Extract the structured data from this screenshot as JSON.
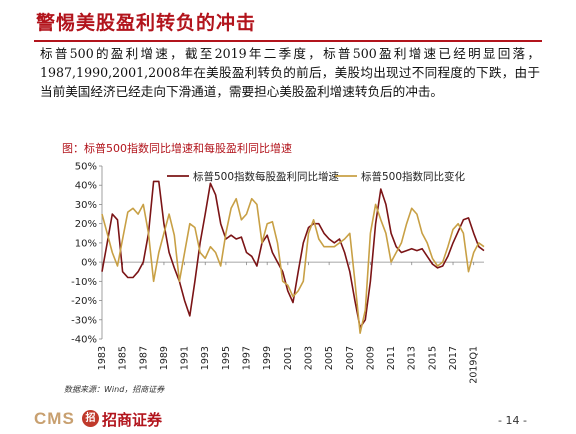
{
  "page": {
    "title": "警惕美股盈利转负的冲击",
    "paragraph": "标普500的盈利增速，截至2019年二季度，标普500盈利增速已经明显回落，1987,1990,2001,2008年在美股盈利转负的前后，美股均出现过不同程度的下跌，由于当前美国经济已经走向下滑通道，需要担心美股盈利增速转负后的冲击。",
    "source": "数据来源：Wind，招商证券",
    "page_number": "- 14 -",
    "logo_text": "CMS",
    "logo_mark": "招",
    "logo_cn": "招商证券"
  },
  "colors": {
    "title_red": "#b2141c",
    "series_eps": "#7b1416",
    "series_index": "#c8a045"
  },
  "chart_data": {
    "type": "line",
    "title": "图：标普500指数同比增速和每股盈利同比增速",
    "ylim": [
      -40,
      50
    ],
    "y_ticks": [
      "50%",
      "40%",
      "30%",
      "20%",
      "10%",
      "0%",
      "-10%",
      "-20%",
      "-30%",
      "-40%"
    ],
    "y_tick_values": [
      50,
      40,
      30,
      20,
      10,
      0,
      -10,
      -20,
      -30,
      -40
    ],
    "x_tick_labels": [
      "1983",
      "1985",
      "1987",
      "1989",
      "1991",
      "1993",
      "1995",
      "1997",
      "1999",
      "2001",
      "2003",
      "2005",
      "2007",
      "2009",
      "2011",
      "2013",
      "2015",
      "2017",
      "2019Q1"
    ],
    "x_tick_values": [
      1983,
      1985,
      1987,
      1989,
      1991,
      1993,
      1995,
      1997,
      1999,
      2001,
      2003,
      2005,
      2007,
      2009,
      2011,
      2013,
      2015,
      2017,
      2019
    ],
    "xlim": [
      1983,
      2020
    ],
    "legend_position": "top",
    "series": [
      {
        "name": "标普500指数每股盈利同比增速",
        "points": [
          [
            1983,
            -5
          ],
          [
            1983.5,
            10
          ],
          [
            1984,
            25
          ],
          [
            1984.5,
            22
          ],
          [
            1985,
            -5
          ],
          [
            1985.5,
            -8
          ],
          [
            1986,
            -8
          ],
          [
            1986.5,
            -5
          ],
          [
            1987,
            0
          ],
          [
            1987.5,
            15
          ],
          [
            1988,
            42
          ],
          [
            1988.5,
            42
          ],
          [
            1989,
            20
          ],
          [
            1989.5,
            5
          ],
          [
            1990,
            -3
          ],
          [
            1990.5,
            -10
          ],
          [
            1991,
            -20
          ],
          [
            1991.5,
            -28
          ],
          [
            1992,
            -10
          ],
          [
            1992.5,
            10
          ],
          [
            1993,
            25
          ],
          [
            1993.5,
            41
          ],
          [
            1994,
            35
          ],
          [
            1994.5,
            20
          ],
          [
            1995,
            12
          ],
          [
            1995.5,
            14
          ],
          [
            1996,
            12
          ],
          [
            1996.5,
            13
          ],
          [
            1997,
            5
          ],
          [
            1997.5,
            3
          ],
          [
            1998,
            -2
          ],
          [
            1998.5,
            10
          ],
          [
            1999,
            14
          ],
          [
            1999.5,
            5
          ],
          [
            2000,
            0
          ],
          [
            2000.5,
            -5
          ],
          [
            2001,
            -15
          ],
          [
            2001.5,
            -21
          ],
          [
            2002,
            -5
          ],
          [
            2002.5,
            10
          ],
          [
            2003,
            18
          ],
          [
            2003.5,
            20
          ],
          [
            2004,
            20
          ],
          [
            2004.5,
            15
          ],
          [
            2005,
            12
          ],
          [
            2005.5,
            10
          ],
          [
            2006,
            12
          ],
          [
            2006.5,
            5
          ],
          [
            2007,
            -5
          ],
          [
            2007.5,
            -20
          ],
          [
            2008,
            -34
          ],
          [
            2008.5,
            -30
          ],
          [
            2009,
            -10
          ],
          [
            2009.5,
            20
          ],
          [
            2010,
            38
          ],
          [
            2010.5,
            30
          ],
          [
            2011,
            15
          ],
          [
            2011.5,
            8
          ],
          [
            2012,
            5
          ],
          [
            2012.5,
            6
          ],
          [
            2013,
            7
          ],
          [
            2013.5,
            6
          ],
          [
            2014,
            7
          ],
          [
            2014.5,
            3
          ],
          [
            2015,
            -1
          ],
          [
            2015.5,
            -3
          ],
          [
            2016,
            -2
          ],
          [
            2016.5,
            3
          ],
          [
            2017,
            10
          ],
          [
            2017.5,
            16
          ],
          [
            2018,
            22
          ],
          [
            2018.5,
            23
          ],
          [
            2019,
            15
          ],
          [
            2019.5,
            8
          ],
          [
            2020,
            6
          ]
        ]
      },
      {
        "name": "标普500指数同比变化",
        "points": [
          [
            1983,
            25
          ],
          [
            1983.5,
            15
          ],
          [
            1984,
            5
          ],
          [
            1984.5,
            -2
          ],
          [
            1985,
            12
          ],
          [
            1985.5,
            26
          ],
          [
            1986,
            28
          ],
          [
            1986.5,
            25
          ],
          [
            1987,
            30
          ],
          [
            1987.5,
            15
          ],
          [
            1988,
            -10
          ],
          [
            1988.5,
            5
          ],
          [
            1989,
            15
          ],
          [
            1989.5,
            25
          ],
          [
            1990,
            14
          ],
          [
            1990.5,
            -10
          ],
          [
            1991,
            5
          ],
          [
            1991.5,
            20
          ],
          [
            1992,
            18
          ],
          [
            1992.5,
            5
          ],
          [
            1993,
            2
          ],
          [
            1993.5,
            8
          ],
          [
            1994,
            5
          ],
          [
            1994.5,
            -2
          ],
          [
            1995,
            15
          ],
          [
            1995.5,
            28
          ],
          [
            1996,
            33
          ],
          [
            1996.5,
            22
          ],
          [
            1997,
            25
          ],
          [
            1997.5,
            33
          ],
          [
            1998,
            30
          ],
          [
            1998.5,
            10
          ],
          [
            1999,
            20
          ],
          [
            1999.5,
            21
          ],
          [
            2000,
            10
          ],
          [
            2000.5,
            -10
          ],
          [
            2001,
            -12
          ],
          [
            2001.5,
            -18
          ],
          [
            2002,
            -15
          ],
          [
            2002.5,
            -10
          ],
          [
            2003,
            15
          ],
          [
            2003.5,
            22
          ],
          [
            2004,
            12
          ],
          [
            2004.5,
            8
          ],
          [
            2005,
            8
          ],
          [
            2005.5,
            8
          ],
          [
            2006,
            10
          ],
          [
            2006.5,
            12
          ],
          [
            2007,
            15
          ],
          [
            2007.5,
            -10
          ],
          [
            2008,
            -37
          ],
          [
            2008.5,
            -25
          ],
          [
            2009,
            15
          ],
          [
            2009.5,
            30
          ],
          [
            2010,
            22
          ],
          [
            2010.5,
            15
          ],
          [
            2011,
            0
          ],
          [
            2011.5,
            5
          ],
          [
            2012,
            10
          ],
          [
            2012.5,
            20
          ],
          [
            2013,
            28
          ],
          [
            2013.5,
            25
          ],
          [
            2014,
            15
          ],
          [
            2014.5,
            10
          ],
          [
            2015,
            2
          ],
          [
            2015.5,
            -2
          ],
          [
            2016,
            0
          ],
          [
            2016.5,
            8
          ],
          [
            2017,
            17
          ],
          [
            2017.5,
            20
          ],
          [
            2018,
            15
          ],
          [
            2018.5,
            -5
          ],
          [
            2019,
            5
          ],
          [
            2019.5,
            10
          ],
          [
            2020,
            8
          ]
        ]
      }
    ]
  }
}
